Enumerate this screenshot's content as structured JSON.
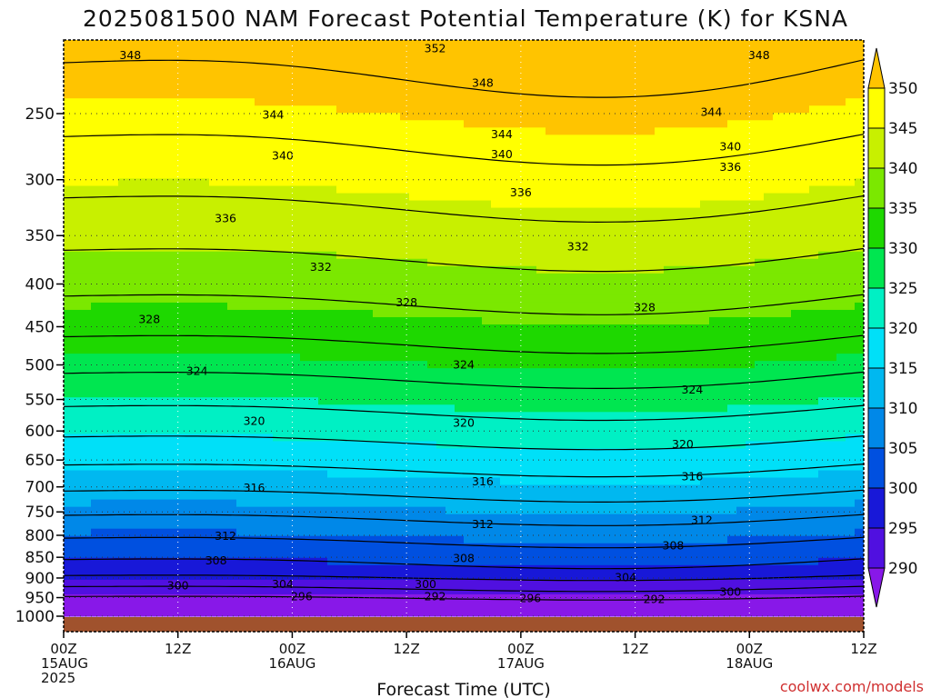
{
  "chart_data": {
    "type": "heatmap",
    "title": "2025081500 NAM Forecast Potential Temperature (K) for KSNA",
    "xlabel": "Forecast Time (UTC)",
    "credit": "coolwx.com/models",
    "y_ticks": [
      250,
      300,
      350,
      400,
      450,
      500,
      550,
      600,
      650,
      700,
      750,
      800,
      850,
      900,
      950,
      1000
    ],
    "x_ticks": [
      {
        "hour": 0,
        "line1": "00Z",
        "line2": "15AUG",
        "line3": "2025"
      },
      {
        "hour": 12,
        "line1": "12Z",
        "line2": "",
        "line3": ""
      },
      {
        "hour": 24,
        "line1": "00Z",
        "line2": "16AUG",
        "line3": ""
      },
      {
        "hour": 36,
        "line1": "12Z",
        "line2": "",
        "line3": ""
      },
      {
        "hour": 48,
        "line1": "00Z",
        "line2": "17AUG",
        "line3": ""
      },
      {
        "hour": 60,
        "line1": "12Z",
        "line2": "",
        "line3": ""
      },
      {
        "hour": 72,
        "line1": "00Z",
        "line2": "18AUG",
        "line3": ""
      },
      {
        "hour": 84,
        "line1": "12Z",
        "line2": "",
        "line3": ""
      }
    ],
    "colorbar": {
      "labels": [
        350,
        345,
        340,
        335,
        330,
        325,
        320,
        315,
        310,
        305,
        300,
        295,
        290
      ],
      "bins": [
        {
          "lo": 350,
          "hi": 355,
          "color": "#ffc400"
        },
        {
          "lo": 345,
          "hi": 350,
          "color": "#ffff00"
        },
        {
          "lo": 340,
          "hi": 345,
          "color": "#c8f000"
        },
        {
          "lo": 335,
          "hi": 340,
          "color": "#7be800"
        },
        {
          "lo": 330,
          "hi": 335,
          "color": "#1ed800"
        },
        {
          "lo": 325,
          "hi": 330,
          "color": "#00e650"
        },
        {
          "lo": 320,
          "hi": 325,
          "color": "#00f0c4"
        },
        {
          "lo": 315,
          "hi": 320,
          "color": "#00e0f8"
        },
        {
          "lo": 310,
          "hi": 315,
          "color": "#00b8f0"
        },
        {
          "lo": 305,
          "hi": 310,
          "color": "#0088e8"
        },
        {
          "lo": 300,
          "hi": 305,
          "color": "#0050e0"
        },
        {
          "lo": 295,
          "hi": 300,
          "color": "#1818d8"
        },
        {
          "lo": 290,
          "hi": 295,
          "color": "#5010e0"
        },
        {
          "lo": 285,
          "hi": 290,
          "color": "#8818e8"
        }
      ]
    },
    "x_range_hours": [
      0,
      84
    ],
    "y_range_hpa": [
      200,
      1000
    ],
    "ground_color": "#a0522d",
    "contour_labels": [
      {
        "t": 7,
        "p": 213,
        "v": "348"
      },
      {
        "t": 39,
        "p": 209,
        "v": "352"
      },
      {
        "t": 73,
        "p": 213,
        "v": "348"
      },
      {
        "t": 44,
        "p": 230,
        "v": "348"
      },
      {
        "t": 22,
        "p": 251,
        "v": "344"
      },
      {
        "t": 46,
        "p": 265,
        "v": "344"
      },
      {
        "t": 68,
        "p": 249,
        "v": "344"
      },
      {
        "t": 23,
        "p": 281,
        "v": "340"
      },
      {
        "t": 46,
        "p": 280,
        "v": "340"
      },
      {
        "t": 70,
        "p": 274,
        "v": "340"
      },
      {
        "t": 70,
        "p": 290,
        "v": "336"
      },
      {
        "t": 48,
        "p": 311,
        "v": "336"
      },
      {
        "t": 17,
        "p": 334,
        "v": "336"
      },
      {
        "t": 54,
        "p": 361,
        "v": "332"
      },
      {
        "t": 27,
        "p": 382,
        "v": "332"
      },
      {
        "t": 36,
        "p": 421,
        "v": "328"
      },
      {
        "t": 61,
        "p": 427,
        "v": "328"
      },
      {
        "t": 9,
        "p": 441,
        "v": "328"
      },
      {
        "t": 14,
        "p": 509,
        "v": "324"
      },
      {
        "t": 42,
        "p": 500,
        "v": "324"
      },
      {
        "t": 66,
        "p": 536,
        "v": "324"
      },
      {
        "t": 20,
        "p": 584,
        "v": "320"
      },
      {
        "t": 42,
        "p": 587,
        "v": "320"
      },
      {
        "t": 65,
        "p": 623,
        "v": "320"
      },
      {
        "t": 20,
        "p": 702,
        "v": "316"
      },
      {
        "t": 44,
        "p": 690,
        "v": "316"
      },
      {
        "t": 66,
        "p": 681,
        "v": "316"
      },
      {
        "t": 17,
        "p": 802,
        "v": "312"
      },
      {
        "t": 44,
        "p": 776,
        "v": "312"
      },
      {
        "t": 67,
        "p": 768,
        "v": "312"
      },
      {
        "t": 16,
        "p": 858,
        "v": "308"
      },
      {
        "t": 42,
        "p": 853,
        "v": "308"
      },
      {
        "t": 64,
        "p": 823,
        "v": "308"
      },
      {
        "t": 12,
        "p": 919,
        "v": "300"
      },
      {
        "t": 23,
        "p": 916,
        "v": "304"
      },
      {
        "t": 38,
        "p": 916,
        "v": "300"
      },
      {
        "t": 59,
        "p": 899,
        "v": "304"
      },
      {
        "t": 70,
        "p": 936,
        "v": "300"
      },
      {
        "t": 25,
        "p": 947,
        "v": "296"
      },
      {
        "t": 39,
        "p": 947,
        "v": "292"
      },
      {
        "t": 49,
        "p": 952,
        "v": "296"
      },
      {
        "t": 62,
        "p": 955,
        "v": "292"
      }
    ]
  }
}
